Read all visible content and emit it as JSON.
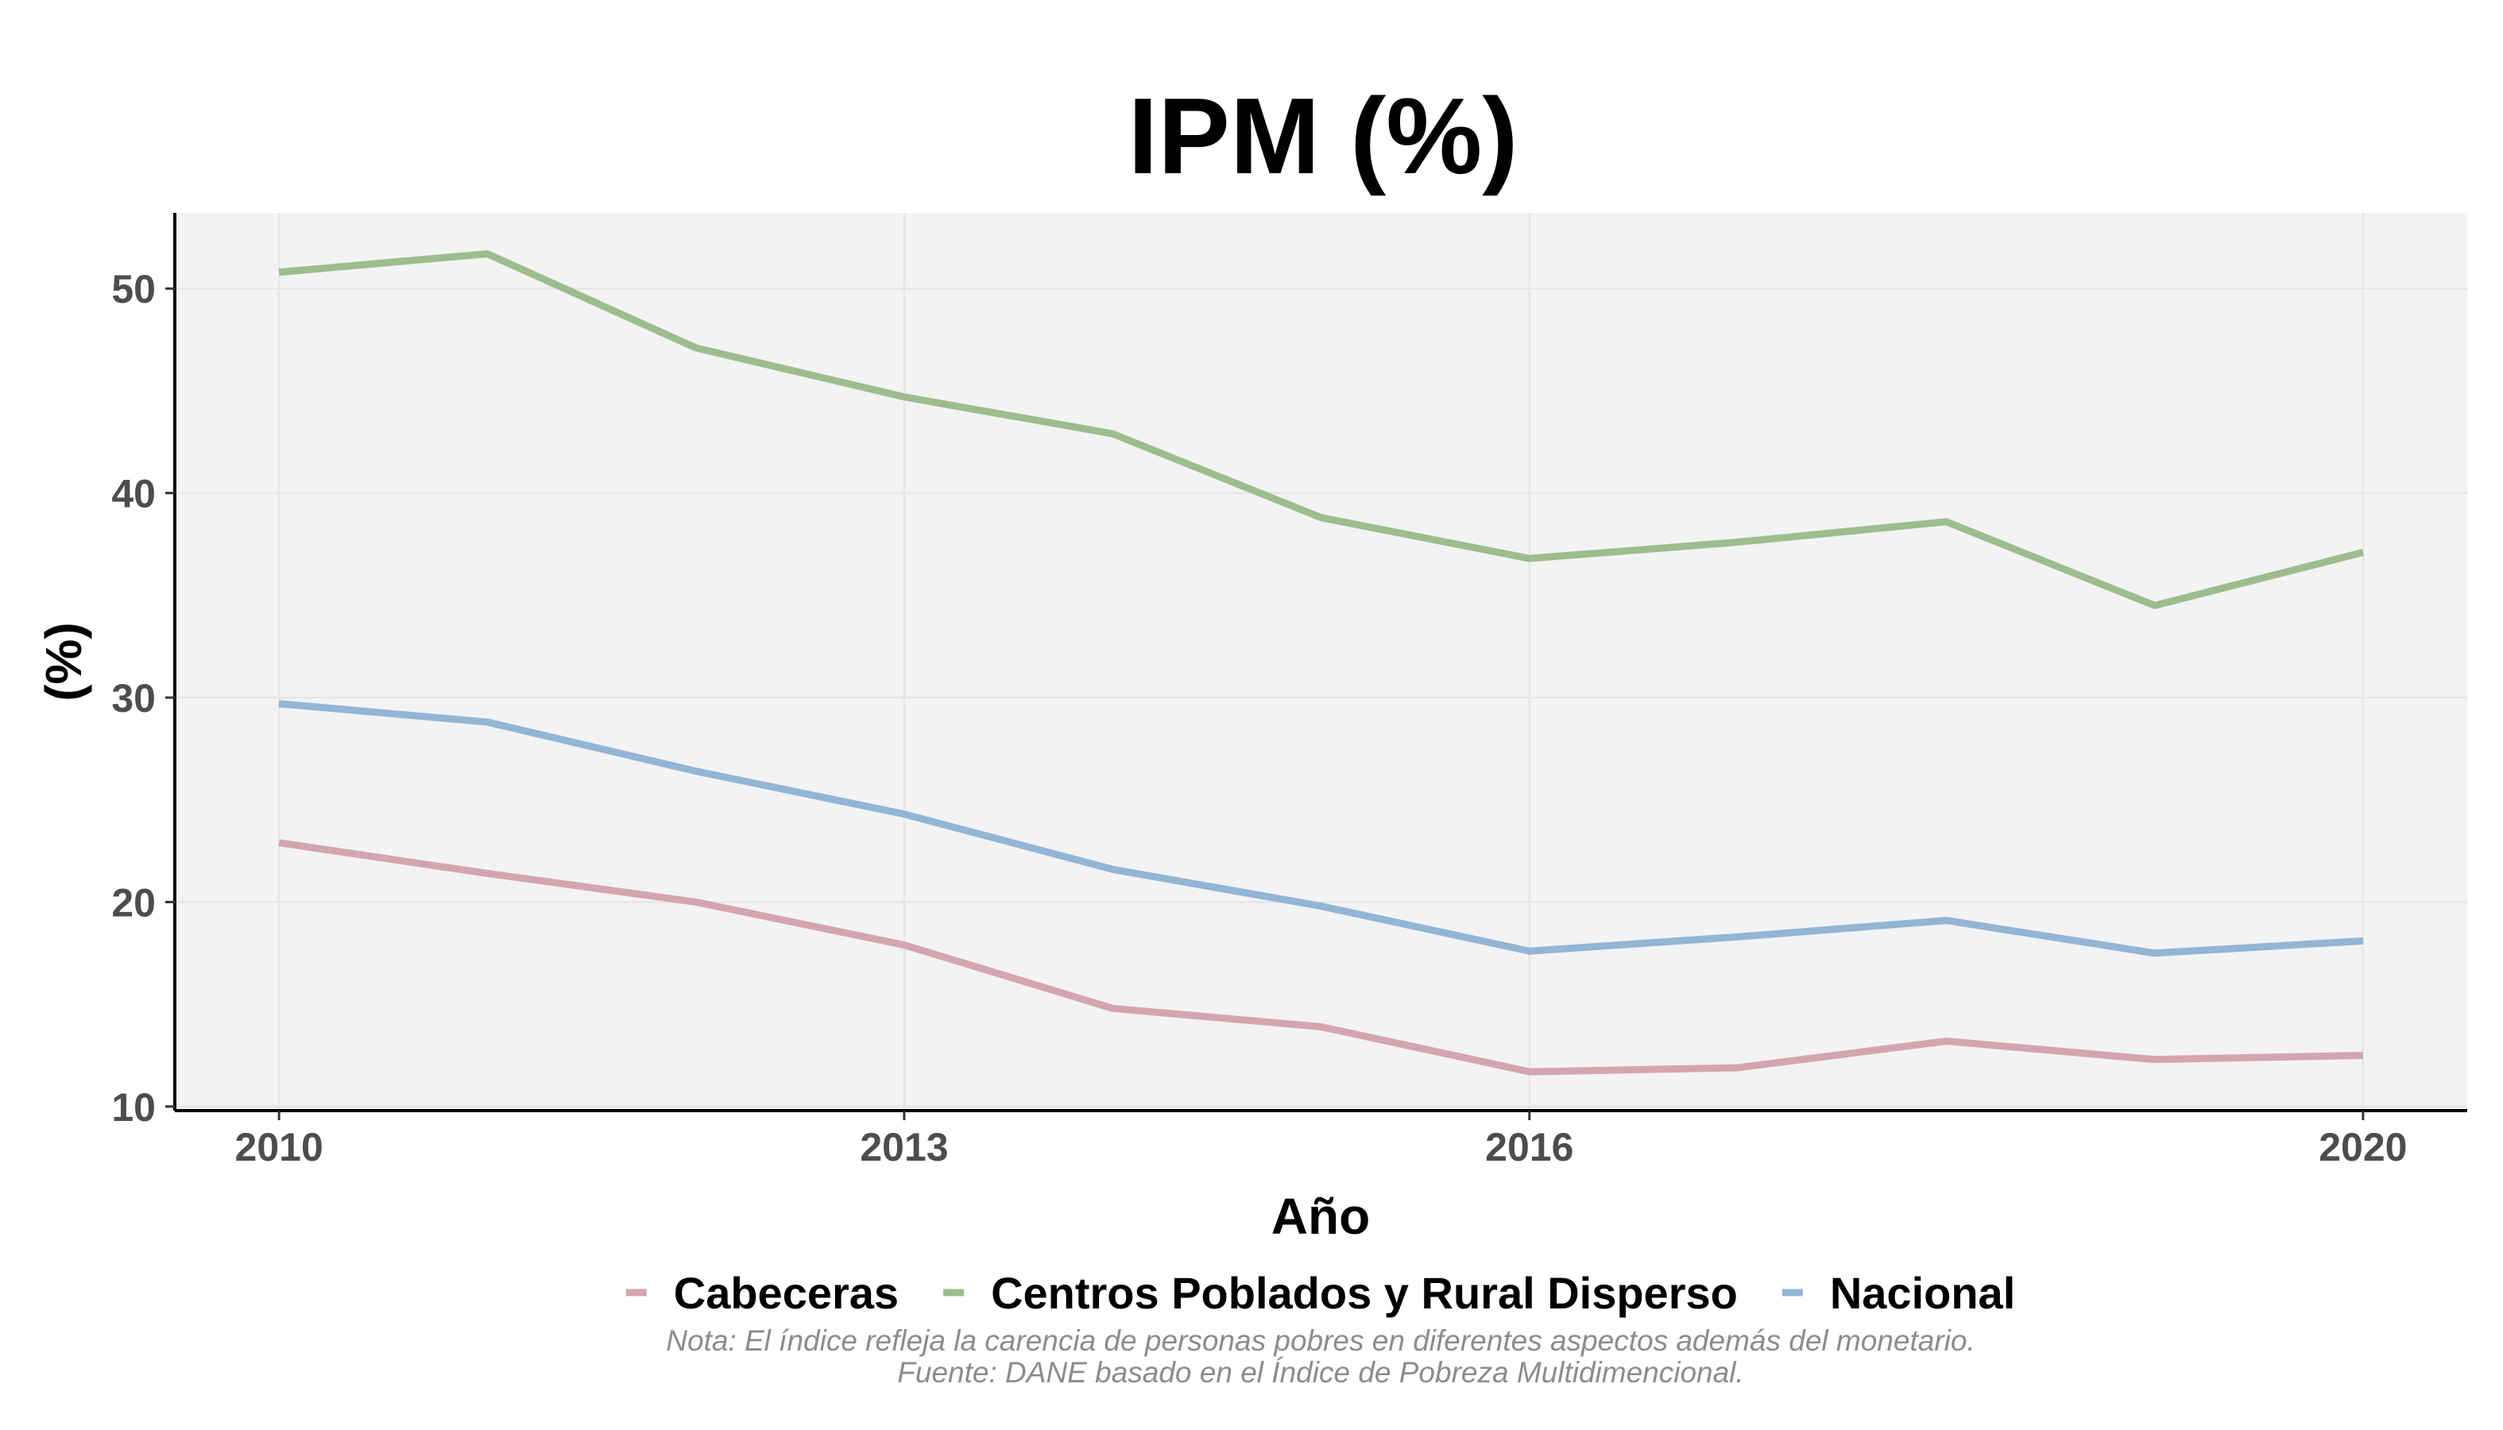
{
  "chart_data": {
    "type": "line",
    "title": "IPM (%)",
    "xlabel": "Año",
    "ylabel": "(%)",
    "x": [
      2010,
      2011,
      2012,
      2013,
      2014,
      2015,
      2016,
      2017,
      2018,
      2019,
      2020
    ],
    "x_ticks": [
      2010,
      2013,
      2016,
      2020
    ],
    "y_ticks": [
      10,
      20,
      30,
      40,
      50
    ],
    "xlim": [
      2009.5,
      2020.5
    ],
    "ylim": [
      9.8,
      53.7
    ],
    "grid": true,
    "panel_background": "#f3f3f3",
    "legend_position": "bottom",
    "series": [
      {
        "name": "Cabeceras",
        "color": "#d4a5b0",
        "values": [
          22.9,
          21.4,
          20.0,
          17.9,
          14.8,
          13.9,
          11.7,
          11.9,
          13.2,
          12.3,
          12.5
        ]
      },
      {
        "name": "Centros Poblados y Rural Disperso",
        "color": "#9dbd8e",
        "values": [
          50.8,
          51.7,
          47.1,
          44.7,
          42.9,
          38.8,
          36.8,
          37.6,
          38.6,
          34.5,
          37.1
        ]
      },
      {
        "name": "Nacional",
        "color": "#93b5d6",
        "values": [
          29.7,
          28.8,
          26.4,
          24.3,
          21.6,
          19.8,
          17.6,
          18.3,
          19.1,
          17.5,
          18.1
        ]
      }
    ],
    "captions": [
      "Nota: El índice refleja la carencia de personas pobres en diferentes aspectos además del monetario.",
      "Fuente: DANE basado en el Índice de Pobreza Multidimencional."
    ]
  }
}
